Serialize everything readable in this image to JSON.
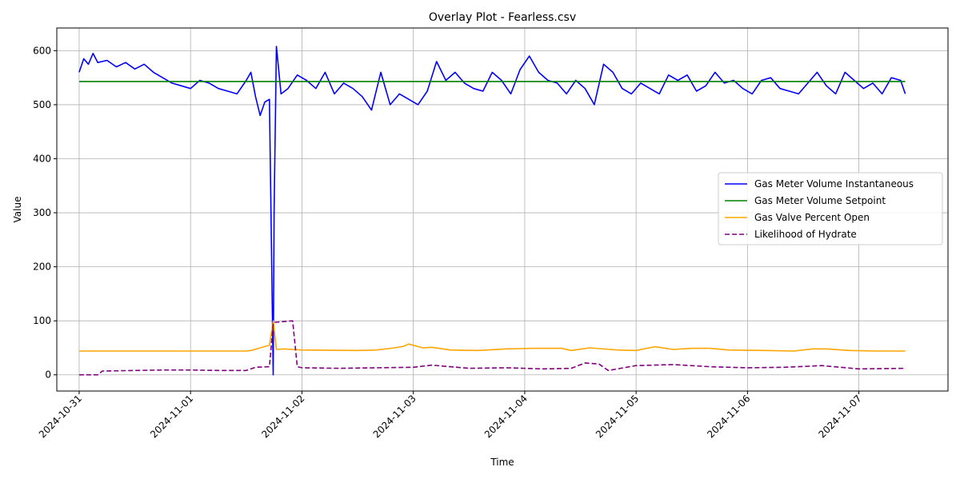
{
  "chart_data": {
    "type": "line",
    "title": "Overlay Plot - Fearless.csv",
    "xlabel": "Time",
    "ylabel": "Value",
    "x_type": "date",
    "xlim": [
      "2024-10-30T19:11",
      "2024-11-07T19:12"
    ],
    "ylim": [
      -30,
      642
    ],
    "x_ticks": [
      "2024-10-31",
      "2024-11-01",
      "2024-11-02",
      "2024-11-03",
      "2024-11-04",
      "2024-11-05",
      "2024-11-06",
      "2024-11-07"
    ],
    "y_ticks": [
      0,
      100,
      200,
      300,
      400,
      500,
      600
    ],
    "grid": true,
    "legend_position": "center-right",
    "series": [
      {
        "name": "Gas Meter Volume Instantaneous",
        "color": "#0000ff",
        "style": "solid",
        "x": [
          "2024-10-31T00:00",
          "2024-10-31T01:00",
          "2024-10-31T02:00",
          "2024-10-31T03:00",
          "2024-10-31T04:00",
          "2024-10-31T06:00",
          "2024-10-31T08:00",
          "2024-10-31T10:00",
          "2024-10-31T12:00",
          "2024-10-31T14:00",
          "2024-10-31T16:00",
          "2024-10-31T18:00",
          "2024-10-31T20:00",
          "2024-10-31T22:00",
          "2024-11-01T00:00",
          "2024-11-01T02:00",
          "2024-11-01T04:00",
          "2024-11-01T06:00",
          "2024-11-01T08:00",
          "2024-11-01T10:00",
          "2024-11-01T12:00",
          "2024-11-01T13:00",
          "2024-11-01T14:00",
          "2024-11-01T15:00",
          "2024-11-01T16:00",
          "2024-11-01T17:00",
          "2024-11-01T17:48",
          "2024-11-01T18:00",
          "2024-11-01T18:30",
          "2024-11-01T19:30",
          "2024-11-01T21:00",
          "2024-11-01T23:00",
          "2024-11-02T01:00",
          "2024-11-02T03:00",
          "2024-11-02T05:00",
          "2024-11-02T07:00",
          "2024-11-02T09:00",
          "2024-11-02T11:00",
          "2024-11-02T13:00",
          "2024-11-02T15:00",
          "2024-11-02T17:00",
          "2024-11-02T19:00",
          "2024-11-02T21:00",
          "2024-11-02T23:00",
          "2024-11-03T01:00",
          "2024-11-03T03:00",
          "2024-11-03T05:00",
          "2024-11-03T07:00",
          "2024-11-03T09:00",
          "2024-11-03T11:00",
          "2024-11-03T13:00",
          "2024-11-03T15:00",
          "2024-11-03T17:00",
          "2024-11-03T19:00",
          "2024-11-03T21:00",
          "2024-11-03T23:00",
          "2024-11-04T01:00",
          "2024-11-04T03:00",
          "2024-11-04T05:00",
          "2024-11-04T07:00",
          "2024-11-04T09:00",
          "2024-11-04T11:00",
          "2024-11-04T13:00",
          "2024-11-04T15:00",
          "2024-11-04T17:00",
          "2024-11-04T19:00",
          "2024-11-04T21:00",
          "2024-11-04T23:00",
          "2024-11-05T01:00",
          "2024-11-05T03:00",
          "2024-11-05T05:00",
          "2024-11-05T07:00",
          "2024-11-05T09:00",
          "2024-11-05T11:00",
          "2024-11-05T13:00",
          "2024-11-05T15:00",
          "2024-11-05T17:00",
          "2024-11-05T19:00",
          "2024-11-05T21:00",
          "2024-11-05T23:00",
          "2024-11-06T01:00",
          "2024-11-06T03:00",
          "2024-11-06T05:00",
          "2024-11-06T07:00",
          "2024-11-06T09:00",
          "2024-11-06T11:00",
          "2024-11-06T13:00",
          "2024-11-06T15:00",
          "2024-11-06T17:00",
          "2024-11-06T19:00",
          "2024-11-06T21:00",
          "2024-11-06T23:00",
          "2024-11-07T01:00",
          "2024-11-07T03:00",
          "2024-11-07T05:00",
          "2024-11-07T07:00",
          "2024-11-07T09:00",
          "2024-11-07T10:00"
        ],
        "values": [
          560,
          585,
          575,
          595,
          578,
          582,
          570,
          578,
          566,
          575,
          560,
          550,
          540,
          535,
          530,
          545,
          540,
          530,
          525,
          520,
          545,
          560,
          515,
          480,
          505,
          510,
          0,
          300,
          608,
          520,
          530,
          555,
          545,
          530,
          560,
          520,
          540,
          530,
          515,
          490,
          560,
          500,
          520,
          510,
          500,
          525,
          580,
          545,
          560,
          540,
          530,
          525,
          560,
          545,
          520,
          565,
          590,
          560,
          545,
          540,
          520,
          545,
          530,
          500,
          575,
          560,
          530,
          520,
          540,
          530,
          520,
          555,
          545,
          555,
          525,
          535,
          560,
          540,
          545,
          530,
          520,
          545,
          550,
          530,
          525,
          520,
          540,
          560,
          535,
          520,
          560,
          545,
          530,
          540,
          520,
          550,
          545,
          520
        ]
      },
      {
        "name": "Gas Meter Volume Setpoint",
        "color": "#008000",
        "style": "solid",
        "x": [
          "2024-10-31T00:00",
          "2024-11-07T10:00"
        ],
        "values": [
          543,
          543
        ]
      },
      {
        "name": "Gas Valve Percent Open",
        "color": "#ffa500",
        "style": "solid",
        "x": [
          "2024-10-31T00:00",
          "2024-11-01T12:00",
          "2024-11-01T13:00",
          "2024-11-01T15:00",
          "2024-11-01T17:00",
          "2024-11-01T17:50",
          "2024-11-01T18:30",
          "2024-11-01T20:00",
          "2024-11-01T22:00",
          "2024-11-02T00:00",
          "2024-11-02T12:00",
          "2024-11-02T16:00",
          "2024-11-02T20:00",
          "2024-11-02T22:00",
          "2024-11-02T23:00",
          "2024-11-03T02:00",
          "2024-11-03T04:00",
          "2024-11-03T08:00",
          "2024-11-03T14:00",
          "2024-11-03T20:00",
          "2024-11-04T02:00",
          "2024-11-04T08:00",
          "2024-11-04T10:00",
          "2024-11-04T14:00",
          "2024-11-04T20:00",
          "2024-11-05T00:00",
          "2024-11-05T04:00",
          "2024-11-05T08:00",
          "2024-11-05T12:00",
          "2024-11-05T16:00",
          "2024-11-05T20:00",
          "2024-11-06T04:00",
          "2024-11-06T10:00",
          "2024-11-06T14:00",
          "2024-11-06T17:00",
          "2024-11-06T22:00",
          "2024-11-07T04:00",
          "2024-11-07T10:00"
        ],
        "values": [
          44,
          44,
          45,
          50,
          55,
          100,
          47,
          48,
          47,
          46,
          45,
          46,
          50,
          53,
          57,
          50,
          51,
          46,
          45,
          48,
          49,
          49,
          45,
          50,
          46,
          45,
          52,
          47,
          49,
          49,
          46,
          45,
          44,
          48,
          48,
          45,
          44,
          44
        ]
      },
      {
        "name": "Likelihood of Hydrate",
        "color": "#800080",
        "style": "dashed",
        "x": [
          "2024-10-31T00:00",
          "2024-10-31T04:00",
          "2024-10-31T05:00",
          "2024-10-31T12:00",
          "2024-10-31T18:00",
          "2024-11-01T00:00",
          "2024-11-01T06:00",
          "2024-11-01T12:00",
          "2024-11-01T14:00",
          "2024-11-01T17:00",
          "2024-11-01T17:48",
          "2024-11-01T18:00",
          "2024-11-01T22:00",
          "2024-11-01T23:00",
          "2024-11-02T00:00",
          "2024-11-02T08:00",
          "2024-11-02T16:00",
          "2024-11-03T00:00",
          "2024-11-03T04:00",
          "2024-11-03T12:00",
          "2024-11-03T20:00",
          "2024-11-04T04:00",
          "2024-11-04T10:00",
          "2024-11-04T13:00",
          "2024-11-04T16:00",
          "2024-11-04T18:00",
          "2024-11-05T00:00",
          "2024-11-05T08:00",
          "2024-11-05T16:00",
          "2024-11-06T00:00",
          "2024-11-06T08:00",
          "2024-11-06T16:00",
          "2024-11-07T00:00",
          "2024-11-07T10:00"
        ],
        "values": [
          0,
          0,
          7,
          8,
          9,
          9,
          8,
          8,
          14,
          15,
          95,
          97,
          100,
          15,
          13,
          12,
          13,
          14,
          18,
          12,
          13,
          11,
          12,
          22,
          20,
          8,
          17,
          19,
          15,
          13,
          14,
          17,
          11,
          12
        ]
      }
    ]
  }
}
